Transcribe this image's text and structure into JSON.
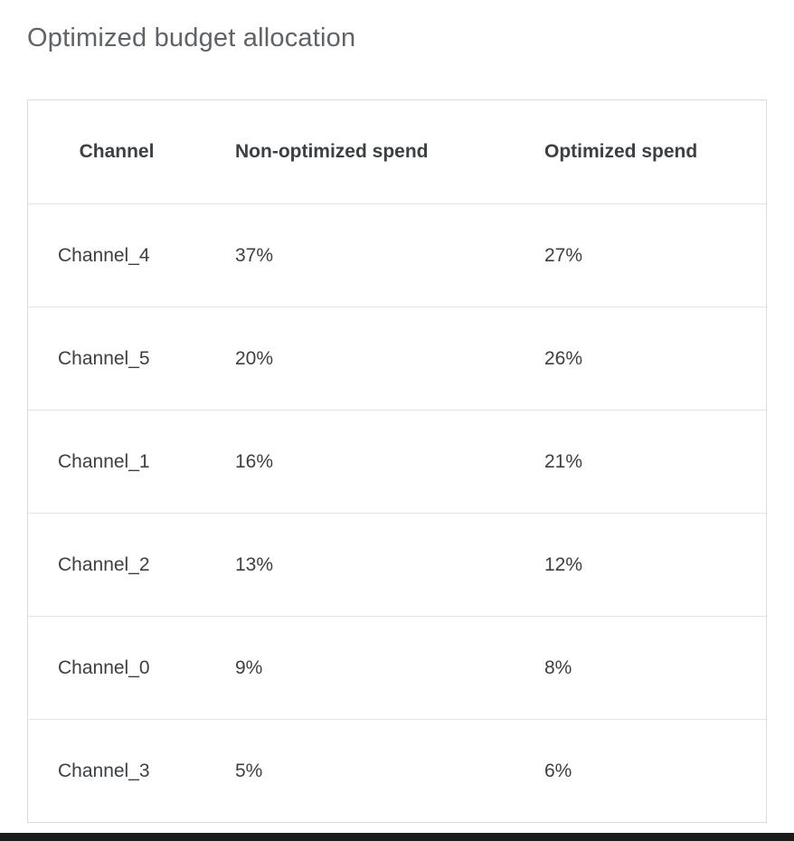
{
  "page": {
    "title": "Optimized budget allocation"
  },
  "table": {
    "columns": [
      "Channel",
      "Non-optimized spend",
      "Optimized spend"
    ],
    "rows": [
      [
        "Channel_4",
        "37%",
        "27%"
      ],
      [
        "Channel_5",
        "20%",
        "26%"
      ],
      [
        "Channel_1",
        "16%",
        "21%"
      ],
      [
        "Channel_2",
        "13%",
        "12%"
      ],
      [
        "Channel_0",
        "9%",
        "8%"
      ],
      [
        "Channel_3",
        "5%",
        "6%"
      ]
    ]
  },
  "colors": {
    "title_text": "#5f6368",
    "header_text": "#3c4043",
    "cell_text": "#3c4043",
    "table_border": "#dadce0",
    "row_divider": "#e3e3e3",
    "bottom_bar": "#1c1c1e"
  },
  "chart_data": {
    "type": "table",
    "title": "Optimized budget allocation",
    "columns": [
      "Channel",
      "Non-optimized spend",
      "Optimized spend"
    ],
    "categories": [
      "Channel_4",
      "Channel_5",
      "Channel_1",
      "Channel_2",
      "Channel_0",
      "Channel_3"
    ],
    "series": [
      {
        "name": "Non-optimized spend",
        "values": [
          37,
          20,
          16,
          13,
          9,
          5
        ]
      },
      {
        "name": "Optimized spend",
        "values": [
          27,
          26,
          21,
          12,
          8,
          6
        ]
      }
    ],
    "value_unit": "%"
  }
}
